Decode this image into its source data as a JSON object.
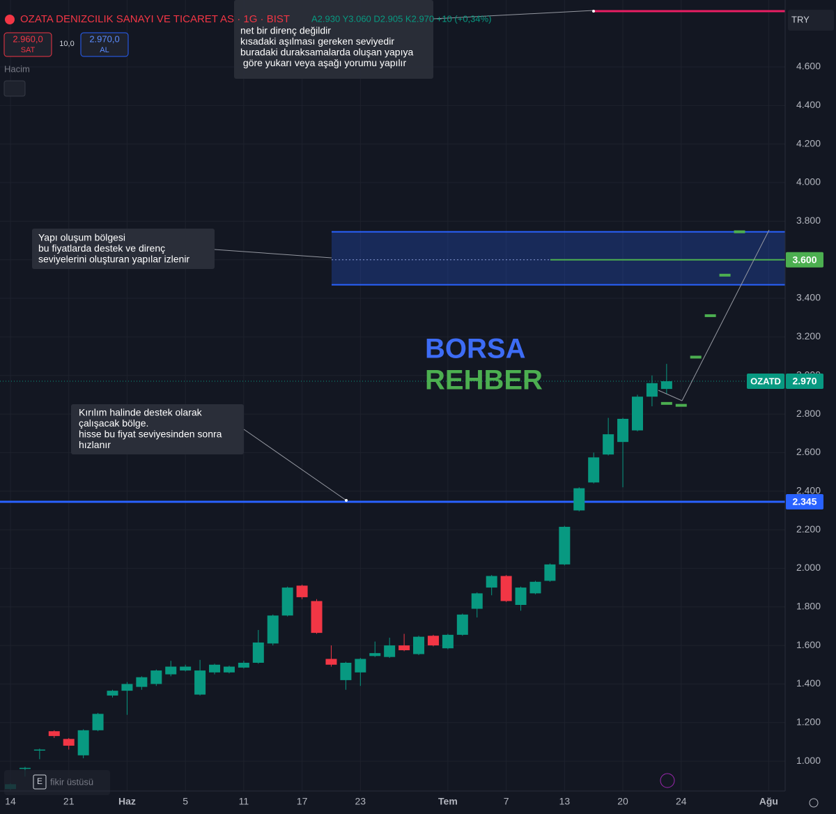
{
  "header": {
    "symbol": "OZATA DENIZCILIK SANAYI VE TICARET AS · 1G · BIST",
    "ohlc": "A2.930 Y3.060 D2.905 K2.970 +10 (+0,34%)",
    "sell_price": "2.960,0",
    "sell_label": "SAT",
    "spread": "10,0",
    "buy_price": "2.970,0",
    "buy_label": "AL",
    "volume_label": "Hacim",
    "currency": "TRY",
    "bottom_hint": "fikir üstüsü",
    "bottom_key": "E"
  },
  "chart_data": {
    "type": "candlestick",
    "categories": [
      "14",
      null,
      null,
      null,
      "21",
      null,
      null,
      null,
      "Haz",
      null,
      null,
      null,
      "5",
      null,
      null,
      null,
      "11",
      null,
      null,
      null,
      "17",
      null,
      null,
      null,
      "23",
      null,
      null,
      null,
      null,
      null,
      "Tem",
      null,
      null,
      null,
      "7",
      null,
      null,
      null,
      "13",
      null,
      null,
      null,
      "20",
      null,
      null,
      null,
      "24",
      null,
      null,
      null,
      null,
      null,
      "Ağu"
    ],
    "open": [
      0.855,
      0.96,
      1.06,
      1.155,
      1.115,
      1.03,
      1.16,
      1.34,
      1.365,
      1.385,
      1.4,
      1.45,
      1.47,
      1.345,
      1.46,
      1.46,
      1.485,
      1.51,
      1.61,
      1.755,
      1.91,
      1.83,
      1.53,
      1.42,
      1.46,
      1.545,
      1.54,
      1.6,
      1.555,
      1.65,
      1.585,
      1.655,
      1.79,
      1.9,
      1.96,
      1.81,
      1.87,
      1.935,
      2.02,
      2.3,
      2.445,
      2.59,
      2.655,
      2.715,
      2.89,
      2.93,
      null,
      null,
      null,
      null,
      null,
      null,
      null
    ],
    "high": [
      0.885,
      0.97,
      1.065,
      1.16,
      1.12,
      1.165,
      1.25,
      1.37,
      1.41,
      1.44,
      1.475,
      1.52,
      1.5,
      1.525,
      1.505,
      1.495,
      1.52,
      1.68,
      1.76,
      1.905,
      1.915,
      1.84,
      1.6,
      1.515,
      1.535,
      1.62,
      1.64,
      1.66,
      1.65,
      1.655,
      1.66,
      1.765,
      1.875,
      1.965,
      1.965,
      1.905,
      1.935,
      2.025,
      2.22,
      2.42,
      2.6,
      2.78,
      2.78,
      2.9,
      3.0,
      3.06,
      null,
      null,
      null,
      null,
      null,
      null,
      null
    ],
    "low": [
      0.85,
      0.92,
      1.01,
      1.12,
      1.06,
      1.015,
      1.155,
      1.33,
      1.24,
      1.37,
      1.39,
      1.44,
      1.465,
      1.34,
      1.45,
      1.455,
      1.48,
      1.505,
      1.6,
      1.75,
      1.84,
      1.66,
      1.49,
      1.37,
      1.39,
      1.54,
      1.535,
      1.57,
      1.55,
      1.595,
      1.58,
      1.65,
      1.745,
      1.86,
      1.825,
      1.78,
      1.865,
      1.93,
      2.015,
      2.295,
      2.44,
      2.585,
      2.42,
      2.71,
      2.84,
      2.905,
      null,
      null,
      null,
      null,
      null,
      null,
      null
    ],
    "close": [
      0.88,
      0.965,
      1.06,
      1.13,
      1.08,
      1.16,
      1.245,
      1.365,
      1.4,
      1.435,
      1.47,
      1.49,
      1.49,
      1.47,
      1.5,
      1.49,
      1.51,
      1.615,
      1.755,
      1.9,
      1.85,
      1.665,
      1.5,
      1.51,
      1.53,
      1.56,
      1.6,
      1.575,
      1.645,
      1.6,
      1.655,
      1.76,
      1.87,
      1.96,
      1.83,
      1.9,
      1.93,
      2.02,
      2.215,
      2.415,
      2.575,
      2.695,
      2.775,
      2.89,
      2.96,
      2.97,
      null,
      null,
      null,
      null,
      null,
      null,
      null
    ],
    "projection": [
      null,
      null,
      null,
      null,
      null,
      null,
      null,
      null,
      null,
      null,
      null,
      null,
      null,
      null,
      null,
      null,
      null,
      null,
      null,
      null,
      null,
      null,
      null,
      null,
      null,
      null,
      null,
      null,
      null,
      null,
      null,
      null,
      null,
      null,
      null,
      null,
      null,
      null,
      null,
      null,
      null,
      null,
      null,
      null,
      null,
      2.855,
      2.845,
      3.095,
      3.31,
      3.52,
      3.745,
      null,
      null
    ],
    "up_color": "#089981",
    "down_color": "#f23645",
    "projection_color": "#4caf50",
    "ylim": [
      0.845,
      4.947
    ],
    "yticks": [
      {
        "value": 1,
        "label": "1.000"
      },
      {
        "value": 1.2,
        "label": "1.200"
      },
      {
        "value": 1.4,
        "label": "1.400"
      },
      {
        "value": 1.6,
        "label": "1.600"
      },
      {
        "value": 1.8,
        "label": "1.800"
      },
      {
        "value": 2,
        "label": "2.000"
      },
      {
        "value": 2.2,
        "label": "2.200"
      },
      {
        "value": 2.4,
        "label": "2.400"
      },
      {
        "value": 2.6,
        "label": "2.600"
      },
      {
        "value": 2.8,
        "label": "2.800"
      },
      {
        "value": 3,
        "label": "3.000"
      },
      {
        "value": 3.2,
        "label": "3.200"
      },
      {
        "value": 3.4,
        "label": "3.400"
      },
      {
        "value": 3.6,
        "label": "3.600"
      },
      {
        "value": 3.8,
        "label": "3.800"
      },
      {
        "value": 4,
        "label": "4.000"
      },
      {
        "value": 4.2,
        "label": "4.200"
      },
      {
        "value": 4.4,
        "label": "4.400"
      },
      {
        "value": 4.6,
        "label": "4.600"
      }
    ],
    "grid": true,
    "support": {
      "value": 2.345,
      "label": "2.345",
      "color": "#2962ff"
    },
    "zone": {
      "top": 3.745,
      "bottom": 3.47,
      "color": "#2962ff"
    },
    "zone_line": {
      "value": 3.6,
      "label": "3.600",
      "color": "#4caf50"
    },
    "last_price": {
      "value": 2.97,
      "label": "2.970",
      "symbol": "OZATD",
      "color": "#089981"
    },
    "annotations": [
      {
        "lines": [
          "net bir direnç değildir",
          "kısadaki aşılması gereken seviyedir",
          "buradaki duraksamalarda oluşan yapıya",
          " göre yukarı veya aşağı yorumu yapılır"
        ]
      },
      {
        "lines": [
          "Yapı oluşum bölgesi",
          "bu fiyatlarda destek ve direnç",
          "seviyelerini oluşturan yapılar izlenir"
        ]
      },
      {
        "lines": [
          "Kırılım halinde destek olarak",
          "çalışacak bölge.",
          "hisse bu fiyat seviyesinden sonra",
          "hızlanır"
        ]
      }
    ],
    "watermark": [
      "BORSA",
      "REHBER"
    ]
  }
}
